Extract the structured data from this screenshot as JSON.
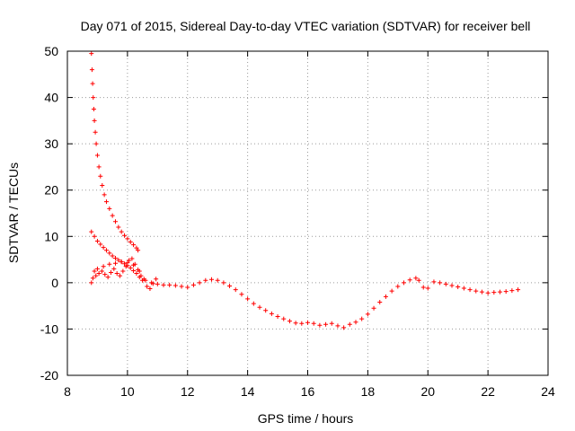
{
  "chart_data": {
    "type": "scatter",
    "title": "Day 071 of 2015, Sidereal Day-to-day VTEC variation (SDTVAR) for receiver bell",
    "xlabel": "GPS time / hours",
    "ylabel": "SDTVAR / TECUs",
    "xlim": [
      8,
      24
    ],
    "ylim": [
      -20,
      50
    ],
    "xticks": [
      8,
      10,
      12,
      14,
      16,
      18,
      20,
      22,
      24
    ],
    "yticks": [
      -20,
      -10,
      0,
      10,
      20,
      30,
      40,
      50
    ],
    "xtick_labels": [
      "8",
      "10",
      "12",
      "14",
      "16",
      "18",
      "20",
      "22",
      "24"
    ],
    "ytick_labels": [
      "-20",
      "-10",
      "0",
      "10",
      "20",
      "30",
      "40",
      "50"
    ],
    "grid": true,
    "marker": "+",
    "color": "#ff0000",
    "series": [
      {
        "name": "steep-decay-track",
        "points": [
          [
            8.8,
            49.5
          ],
          [
            8.82,
            46
          ],
          [
            8.84,
            43
          ],
          [
            8.86,
            40
          ],
          [
            8.88,
            37.5
          ],
          [
            8.9,
            35
          ],
          [
            8.93,
            32.5
          ],
          [
            8.96,
            30
          ],
          [
            9.0,
            27.5
          ],
          [
            9.05,
            25
          ],
          [
            9.1,
            23
          ],
          [
            9.16,
            21
          ],
          [
            9.23,
            19
          ],
          [
            9.3,
            17.5
          ],
          [
            9.4,
            16
          ],
          [
            9.5,
            14.5
          ],
          [
            9.6,
            13.2
          ],
          [
            9.7,
            12
          ],
          [
            9.8,
            11
          ],
          [
            9.9,
            10.2
          ],
          [
            10.0,
            9.5
          ],
          [
            10.1,
            8.8
          ],
          [
            10.2,
            8.2
          ],
          [
            10.3,
            7.5
          ],
          [
            10.35,
            7.0
          ]
        ]
      },
      {
        "name": "secondary-decay-track",
        "points": [
          [
            8.8,
            11
          ],
          [
            8.9,
            10
          ],
          [
            9.0,
            9
          ],
          [
            9.1,
            8.3
          ],
          [
            9.2,
            7.6
          ],
          [
            9.3,
            7
          ],
          [
            9.4,
            6.4
          ],
          [
            9.5,
            5.8
          ],
          [
            9.6,
            5.3
          ],
          [
            9.7,
            4.9
          ],
          [
            9.8,
            4.5
          ],
          [
            9.9,
            4.1
          ],
          [
            10.0,
            3.7
          ],
          [
            10.1,
            3.2
          ],
          [
            10.2,
            2.6
          ],
          [
            10.3,
            2.0
          ],
          [
            10.4,
            1.2
          ],
          [
            10.5,
            0.5
          ]
        ]
      },
      {
        "name": "main-track",
        "points": [
          [
            8.8,
            0.0
          ],
          [
            8.9,
            2.5
          ],
          [
            9.0,
            3.0
          ],
          [
            9.2,
            3.5
          ],
          [
            9.4,
            4.0
          ],
          [
            9.6,
            4.2
          ],
          [
            9.8,
            4.5
          ],
          [
            10.0,
            4.3
          ],
          [
            10.2,
            3.8
          ],
          [
            10.4,
            2.5
          ],
          [
            10.6,
            0.5
          ],
          [
            10.8,
            0.0
          ],
          [
            11.0,
            -0.3
          ],
          [
            11.2,
            -0.5
          ],
          [
            11.4,
            -0.5
          ],
          [
            11.6,
            -0.6
          ],
          [
            11.8,
            -0.8
          ],
          [
            12.0,
            -1.0
          ],
          [
            12.2,
            -0.5
          ],
          [
            12.4,
            0.0
          ],
          [
            12.6,
            0.5
          ],
          [
            12.8,
            0.7
          ],
          [
            13.0,
            0.5
          ],
          [
            13.2,
            0.0
          ],
          [
            13.4,
            -0.7
          ],
          [
            13.6,
            -1.5
          ],
          [
            13.8,
            -2.5
          ],
          [
            14.0,
            -3.5
          ],
          [
            14.2,
            -4.5
          ],
          [
            14.4,
            -5.3
          ],
          [
            14.6,
            -6.0
          ],
          [
            14.8,
            -6.7
          ],
          [
            15.0,
            -7.3
          ],
          [
            15.2,
            -7.8
          ],
          [
            15.4,
            -8.3
          ],
          [
            15.6,
            -8.7
          ],
          [
            15.8,
            -8.8
          ],
          [
            16.0,
            -8.6
          ],
          [
            16.2,
            -8.8
          ],
          [
            16.4,
            -9.2
          ],
          [
            16.6,
            -9.0
          ],
          [
            16.8,
            -8.8
          ],
          [
            17.0,
            -9.3
          ],
          [
            17.2,
            -9.7
          ],
          [
            17.4,
            -9.0
          ],
          [
            17.6,
            -8.5
          ],
          [
            17.8,
            -7.8
          ],
          [
            18.0,
            -6.8
          ],
          [
            18.2,
            -5.5
          ],
          [
            18.4,
            -4.2
          ],
          [
            18.6,
            -3.0
          ],
          [
            18.8,
            -1.8
          ],
          [
            19.0,
            -0.8
          ],
          [
            19.2,
            0.0
          ],
          [
            19.4,
            0.6
          ],
          [
            19.6,
            1.0
          ],
          [
            19.7,
            0.5
          ],
          [
            19.85,
            -1.0
          ],
          [
            20.0,
            -1.2
          ],
          [
            20.2,
            0.2
          ],
          [
            20.4,
            0.0
          ],
          [
            20.6,
            -0.3
          ],
          [
            20.8,
            -0.6
          ],
          [
            21.0,
            -0.9
          ],
          [
            21.2,
            -1.2
          ],
          [
            21.4,
            -1.5
          ],
          [
            21.6,
            -1.8
          ],
          [
            21.8,
            -2.0
          ],
          [
            22.0,
            -2.2
          ],
          [
            22.2,
            -2.1
          ],
          [
            22.4,
            -2.0
          ],
          [
            22.6,
            -1.9
          ],
          [
            22.8,
            -1.7
          ],
          [
            23.0,
            -1.5
          ]
        ]
      },
      {
        "name": "early-cluster",
        "points": [
          [
            8.85,
            1.0
          ],
          [
            8.95,
            1.5
          ],
          [
            9.05,
            2.0
          ],
          [
            9.15,
            2.5
          ],
          [
            9.25,
            1.8
          ],
          [
            9.35,
            1.2
          ],
          [
            9.45,
            2.2
          ],
          [
            9.55,
            3.0
          ],
          [
            9.65,
            2.0
          ],
          [
            9.75,
            1.5
          ],
          [
            9.85,
            2.5
          ],
          [
            9.95,
            3.5
          ],
          [
            10.05,
            4.8
          ],
          [
            10.15,
            5.2
          ],
          [
            10.25,
            4.0
          ],
          [
            10.35,
            2.8
          ],
          [
            10.45,
            1.5
          ],
          [
            10.55,
            0.8
          ],
          [
            10.65,
            -0.8
          ],
          [
            10.75,
            -1.3
          ],
          [
            10.85,
            -0.2
          ],
          [
            10.95,
            0.8
          ]
        ]
      }
    ]
  }
}
